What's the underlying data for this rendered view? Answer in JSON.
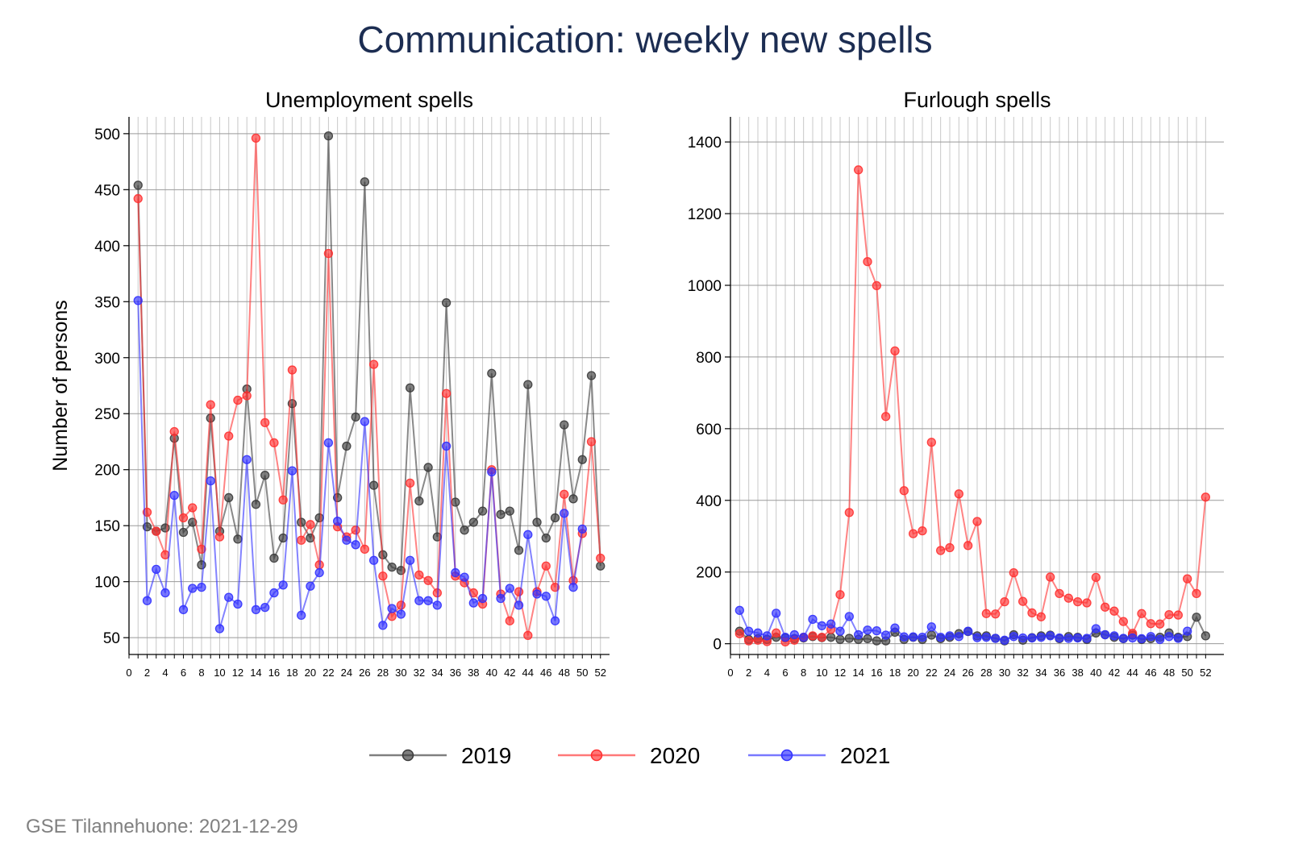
{
  "title": "Communication: weekly new spells",
  "footnote": "GSE Tilannehuone: 2021-12-29",
  "legend": [
    "2019",
    "2020",
    "2021"
  ],
  "colors": {
    "2019": "#3a3a3a",
    "2020": "#ff3030",
    "2021": "#3030ff",
    "title": "#1c2d52"
  },
  "chart_data": [
    {
      "type": "line",
      "title": "Unemployment spells",
      "ylabel": "Number of persons",
      "xlabel": "",
      "xlim": [
        0,
        53
      ],
      "ylim": [
        35,
        515
      ],
      "yticks": [
        50,
        100,
        150,
        200,
        250,
        300,
        350,
        400,
        450,
        500
      ],
      "xticks": [
        0,
        2,
        4,
        6,
        8,
        10,
        12,
        14,
        16,
        18,
        20,
        22,
        24,
        26,
        28,
        30,
        32,
        34,
        36,
        38,
        40,
        42,
        44,
        46,
        48,
        50,
        52
      ],
      "x": [
        1,
        2,
        3,
        4,
        5,
        6,
        7,
        8,
        9,
        10,
        11,
        12,
        13,
        14,
        15,
        16,
        17,
        18,
        19,
        20,
        21,
        22,
        23,
        24,
        25,
        26,
        27,
        28,
        29,
        30,
        31,
        32,
        33,
        34,
        35,
        36,
        37,
        38,
        39,
        40,
        41,
        42,
        43,
        44,
        45,
        46,
        47,
        48,
        49,
        50,
        51,
        52
      ],
      "grid": true,
      "series": [
        {
          "name": "2019",
          "values": [
            454,
            149,
            145,
            148,
            228,
            144,
            153,
            115,
            246,
            145,
            175,
            138,
            272,
            169,
            195,
            121,
            139,
            259,
            153,
            139,
            157,
            498,
            175,
            221,
            247,
            457,
            186,
            124,
            113,
            110,
            273,
            172,
            202,
            140,
            349,
            171,
            146,
            153,
            163,
            286,
            160,
            163,
            128,
            276,
            153,
            139,
            157,
            240,
            174,
            209,
            284,
            114
          ]
        },
        {
          "name": "2020",
          "values": [
            442,
            162,
            145,
            124,
            234,
            157,
            166,
            129,
            258,
            140,
            230,
            262,
            266,
            496,
            242,
            224,
            173,
            289,
            137,
            151,
            115,
            393,
            149,
            140,
            146,
            129,
            294,
            105,
            69,
            79,
            188,
            106,
            101,
            90,
            268,
            105,
            99,
            90,
            80,
            200,
            89,
            65,
            91,
            52,
            91,
            114,
            95,
            178,
            101,
            143,
            225,
            121
          ]
        },
        {
          "name": "2021",
          "values": [
            351,
            83,
            111,
            90,
            177,
            75,
            94,
            95,
            190,
            58,
            86,
            80,
            209,
            75,
            77,
            90,
            97,
            199,
            70,
            96,
            108,
            224,
            154,
            137,
            133,
            243,
            119,
            61,
            76,
            71,
            119,
            83,
            83,
            79,
            221,
            108,
            104,
            81,
            85,
            198,
            85,
            94,
            79,
            142,
            89,
            87,
            65,
            161,
            95,
            147,
            null,
            null
          ]
        }
      ]
    },
    {
      "type": "line",
      "title": "Furlough spells",
      "ylabel": "",
      "xlabel": "",
      "xlim": [
        0,
        54
      ],
      "ylim": [
        -30,
        1470
      ],
      "yticks": [
        0,
        200,
        400,
        600,
        800,
        1000,
        1200,
        1400
      ],
      "xticks": [
        0,
        2,
        4,
        6,
        8,
        10,
        12,
        14,
        16,
        18,
        20,
        22,
        24,
        26,
        28,
        30,
        32,
        34,
        36,
        38,
        40,
        42,
        44,
        46,
        48,
        50,
        52
      ],
      "x": [
        1,
        2,
        3,
        4,
        5,
        6,
        7,
        8,
        9,
        10,
        11,
        12,
        13,
        14,
        15,
        16,
        17,
        18,
        19,
        20,
        21,
        22,
        23,
        24,
        25,
        26,
        27,
        28,
        29,
        30,
        31,
        32,
        33,
        34,
        35,
        36,
        37,
        38,
        39,
        40,
        41,
        42,
        43,
        44,
        45,
        46,
        47,
        48,
        49,
        50,
        51,
        52
      ],
      "grid": true,
      "series": [
        {
          "name": "2019",
          "values": [
            35,
            12,
            14,
            12,
            18,
            16,
            14,
            16,
            20,
            17,
            18,
            12,
            15,
            12,
            14,
            8,
            8,
            32,
            12,
            18,
            12,
            24,
            14,
            18,
            28,
            34,
            22,
            22,
            15,
            8,
            25,
            10,
            17,
            22,
            24,
            14,
            20,
            18,
            12,
            30,
            25,
            18,
            14,
            24,
            12,
            14,
            18,
            30,
            18,
            20,
            74,
            22
          ]
        },
        {
          "name": "2020",
          "values": [
            28,
            8,
            10,
            6,
            30,
            5,
            10,
            18,
            22,
            18,
            40,
            137,
            366,
            1322,
            1066,
            999,
            634,
            817,
            427,
            307,
            315,
            562,
            260,
            268,
            418,
            274,
            341,
            84,
            83,
            117,
            198,
            118,
            86,
            75,
            186,
            140,
            127,
            117,
            114,
            185,
            102,
            91,
            62,
            29,
            84,
            56,
            55,
            81,
            80,
            181,
            140,
            409
          ]
        },
        {
          "name": "2021",
          "values": [
            93,
            35,
            30,
            22,
            85,
            18,
            25,
            18,
            68,
            50,
            55,
            35,
            76,
            25,
            38,
            36,
            24,
            44,
            19,
            19,
            18,
            47,
            18,
            22,
            20,
            35,
            17,
            18,
            15,
            10,
            20,
            16,
            16,
            18,
            22,
            16,
            15,
            16,
            15,
            42,
            25,
            22,
            15,
            16,
            14,
            20,
            12,
            20,
            15,
            35,
            null,
            null
          ]
        }
      ]
    }
  ]
}
